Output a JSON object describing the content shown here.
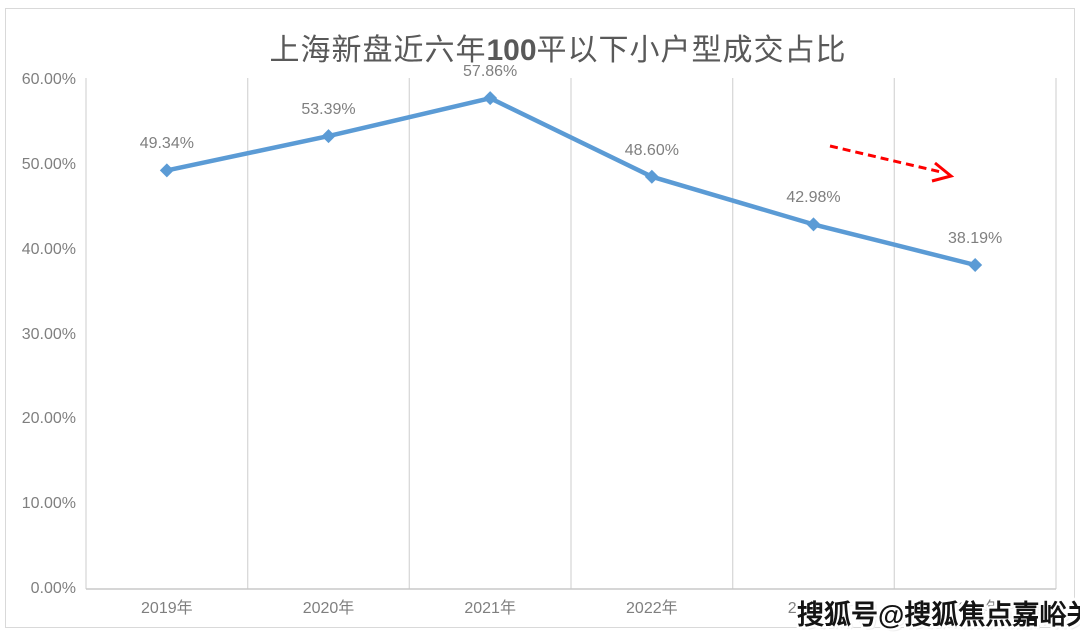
{
  "title": {
    "prefix": "上海新盘近六年",
    "bold_number": "100",
    "suffix": "平以下小户型成交占比"
  },
  "watermark": "搜狐号@搜狐焦点嘉峪关站",
  "chart_data": {
    "type": "line",
    "title": "上海新盘近六年100平以下小户型成交占比",
    "categories": [
      "2019年",
      "2020年",
      "2021年",
      "2022年",
      "2023年",
      "2024年"
    ],
    "series": [
      {
        "name": "100平以下小户型成交占比",
        "values": [
          49.34,
          53.39,
          57.86,
          48.6,
          42.98,
          38.19
        ]
      }
    ],
    "data_labels": [
      "49.34%",
      "53.39%",
      "57.86%",
      "48.60%",
      "42.98%",
      "38.19%"
    ],
    "y_ticks": [
      {
        "label": "60.00%",
        "value": 60
      },
      {
        "label": "50.00%",
        "value": 50
      },
      {
        "label": "40.00%",
        "value": 40
      },
      {
        "label": "30.00%",
        "value": 30
      },
      {
        "label": "20.00%",
        "value": 20
      },
      {
        "label": "10.00%",
        "value": 10
      },
      {
        "label": "0.00%",
        "value": 0
      }
    ],
    "ylim": [
      0,
      60
    ],
    "xlabel": "",
    "ylabel": "",
    "grid": "vertical-only",
    "legend": "none",
    "marker": "diamond",
    "colors": {
      "line": "#5b9bd5",
      "gridline": "#d9d9d9",
      "axis_line": "#c8c8c8",
      "labels": "#7f7f7f",
      "title": "#595959",
      "annotation_arrow": "#fe0000"
    },
    "annotation": {
      "type": "dashed-arrow",
      "direction": "down-right",
      "color": "#fe0000"
    }
  }
}
